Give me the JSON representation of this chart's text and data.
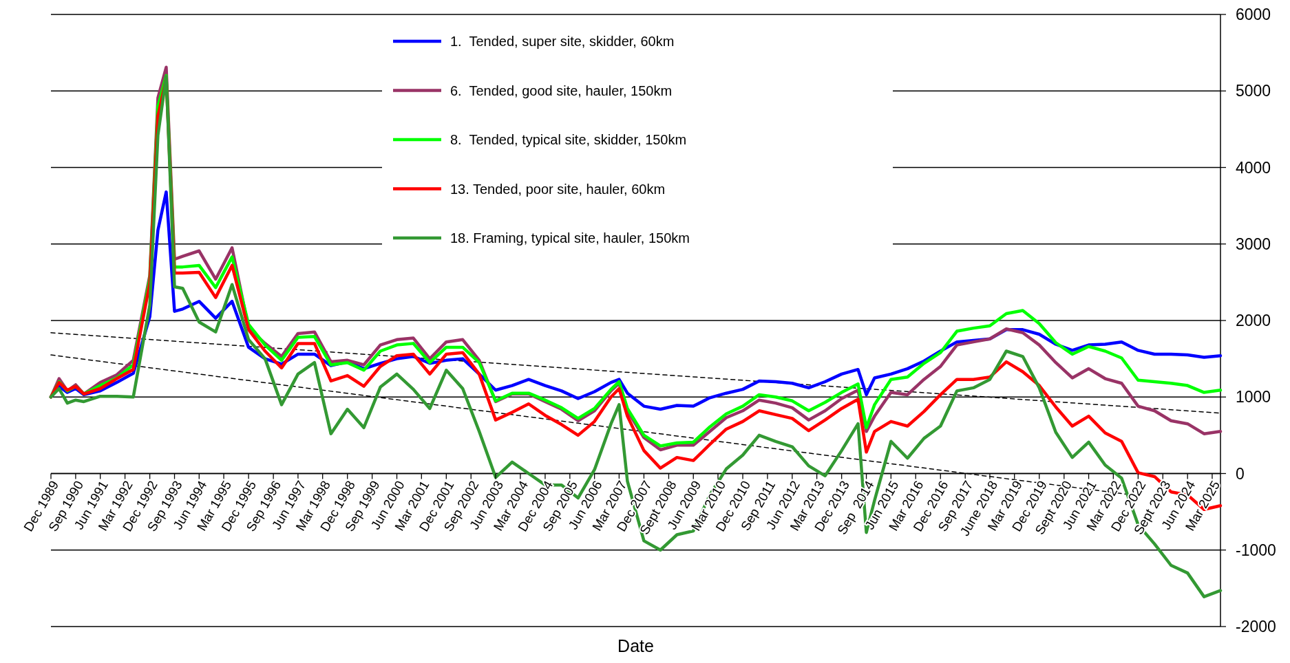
{
  "chart_data": {
    "type": "line",
    "xlabel": "Date",
    "legend": "top",
    "grid": "y",
    "xlim": [
      "1989-12",
      "2025-06"
    ],
    "xticks": [
      {
        "value": "1989-12",
        "label": "Dec 1989"
      },
      {
        "value": "1990-09",
        "label": "Sep 1990"
      },
      {
        "value": "1991-06",
        "label": "Jun 1991"
      },
      {
        "value": "1992-03",
        "label": "Mar 1992"
      },
      {
        "value": "1992-12",
        "label": "Dec 1992"
      },
      {
        "value": "1993-09",
        "label": "Sep 1993"
      },
      {
        "value": "1994-06",
        "label": "Jun 1994"
      },
      {
        "value": "1995-03",
        "label": "Mar 1995"
      },
      {
        "value": "1995-12",
        "label": "Dec 1995"
      },
      {
        "value": "1996-09",
        "label": "Sep 1996"
      },
      {
        "value": "1997-06",
        "label": "Jun 1997"
      },
      {
        "value": "1998-03",
        "label": "Mar 1998"
      },
      {
        "value": "1998-12",
        "label": "Dec 1998"
      },
      {
        "value": "1999-09",
        "label": "Sep 1999"
      },
      {
        "value": "2000-06",
        "label": "Jun 2000"
      },
      {
        "value": "2001-03",
        "label": "Mar 2001"
      },
      {
        "value": "2001-12",
        "label": "Dec 2001"
      },
      {
        "value": "2002-09",
        "label": "Sep 2002"
      },
      {
        "value": "2003-06",
        "label": "Jun 2003"
      },
      {
        "value": "2004-03",
        "label": "Mar 2004"
      },
      {
        "value": "2004-12",
        "label": "Dec 2004"
      },
      {
        "value": "2005-09",
        "label": "Sep 2005"
      },
      {
        "value": "2006-06",
        "label": "Jun 2006"
      },
      {
        "value": "2007-03",
        "label": "Mar 2007"
      },
      {
        "value": "2007-12",
        "label": "Dec 2007"
      },
      {
        "value": "2008-09",
        "label": "Sept 2008"
      },
      {
        "value": "2009-06",
        "label": "Jun 2009"
      },
      {
        "value": "2010-03",
        "label": "Mar 2010"
      },
      {
        "value": "2010-12",
        "label": "Dec 2010"
      },
      {
        "value": "2011-09",
        "label": "Sep 2011"
      },
      {
        "value": "2012-06",
        "label": "Jun 2012"
      },
      {
        "value": "2013-03",
        "label": "Mar 2013"
      },
      {
        "value": "2013-12",
        "label": "Dec 2013"
      },
      {
        "value": "2014-09",
        "label": "Sep  2014"
      },
      {
        "value": "2015-06",
        "label": "Jun 2015"
      },
      {
        "value": "2016-03",
        "label": "Mar 2016"
      },
      {
        "value": "2016-12",
        "label": "Dec 2016"
      },
      {
        "value": "2017-09",
        "label": "Sep 2017"
      },
      {
        "value": "2018-06",
        "label": "June 2018"
      },
      {
        "value": "2019-03",
        "label": "Mar 2019"
      },
      {
        "value": "2019-12",
        "label": "Dec 2019"
      },
      {
        "value": "2020-09",
        "label": "Sept 2020"
      },
      {
        "value": "2021-06",
        "label": "Jun 2021"
      },
      {
        "value": "2022-03",
        "label": "Mar 2022"
      },
      {
        "value": "2022-12",
        "label": "Dec 2022"
      },
      {
        "value": "2023-09",
        "label": "Sept 2023"
      },
      {
        "value": "2024-06",
        "label": "Jun 2024"
      },
      {
        "value": "2025-03",
        "label": "Mar 2025"
      }
    ],
    "ylim": [
      -2000,
      6000
    ],
    "yticks": [
      -2000,
      -1000,
      0,
      1000,
      2000,
      3000,
      4000,
      5000,
      6000
    ],
    "x": [
      "1989-12",
      "1990-03",
      "1990-06",
      "1990-09",
      "1990-12",
      "1991-06",
      "1991-12",
      "1992-06",
      "1992-12",
      "1993-03",
      "1993-06",
      "1993-09",
      "1993-12",
      "1994-06",
      "1994-12",
      "1995-06",
      "1995-12",
      "1996-06",
      "1996-12",
      "1997-06",
      "1997-12",
      "1998-06",
      "1998-12",
      "1999-06",
      "1999-12",
      "2000-06",
      "2000-12",
      "2001-06",
      "2001-12",
      "2002-06",
      "2002-12",
      "2003-06",
      "2003-12",
      "2004-06",
      "2004-12",
      "2005-06",
      "2005-12",
      "2006-06",
      "2006-12",
      "2007-03",
      "2007-06",
      "2007-12",
      "2008-06",
      "2008-12",
      "2009-06",
      "2009-12",
      "2010-06",
      "2010-12",
      "2011-06",
      "2011-12",
      "2012-06",
      "2012-12",
      "2013-06",
      "2013-12",
      "2014-06",
      "2014-09",
      "2014-12",
      "2015-06",
      "2015-12",
      "2016-06",
      "2016-12",
      "2017-06",
      "2017-12",
      "2018-06",
      "2018-12",
      "2019-06",
      "2019-12",
      "2020-06",
      "2020-12",
      "2021-06",
      "2021-12",
      "2022-06",
      "2022-12",
      "2023-06",
      "2023-12",
      "2024-06",
      "2024-12",
      "2025-06"
    ],
    "series": [
      {
        "type": "line",
        "line_style": "dashed",
        "color": "#000000",
        "x": [
          "1989-12",
          "2025-06"
        ],
        "values": [
          1840,
          790
        ]
      },
      {
        "type": "line",
        "line_style": "dashed",
        "color": "#000000",
        "x": [
          "1989-12",
          "2022-12"
        ],
        "values": [
          1550,
          -290
        ]
      },
      {
        "name": "1.  Tended, super site, skidder, 60km",
        "color": "#0000ff",
        "values": [
          1000,
          1140,
          1060,
          1110,
          1030,
          1080,
          1190,
          1310,
          2050,
          3180,
          3680,
          2120,
          2150,
          2250,
          2030,
          2250,
          1650,
          1500,
          1430,
          1560,
          1560,
          1410,
          1460,
          1370,
          1440,
          1500,
          1530,
          1440,
          1480,
          1500,
          1300,
          1090,
          1150,
          1230,
          1150,
          1080,
          980,
          1070,
          1190,
          1230,
          1050,
          880,
          840,
          890,
          880,
          990,
          1050,
          1100,
          1210,
          1200,
          1180,
          1120,
          1200,
          1300,
          1360,
          1030,
          1250,
          1300,
          1370,
          1470,
          1600,
          1720,
          1740,
          1760,
          1880,
          1880,
          1820,
          1690,
          1610,
          1680,
          1690,
          1720,
          1610,
          1560,
          1560,
          1550,
          1520,
          1540
        ]
      },
      {
        "name": "6.  Tended, good site, hauler, 150km",
        "color": "#993366",
        "values": [
          1000,
          1240,
          1080,
          1160,
          1040,
          1190,
          1290,
          1480,
          2590,
          4910,
          5310,
          2800,
          2840,
          2910,
          2540,
          2950,
          1900,
          1700,
          1530,
          1830,
          1850,
          1460,
          1480,
          1420,
          1680,
          1750,
          1770,
          1500,
          1720,
          1750,
          1480,
          940,
          1040,
          1040,
          940,
          840,
          690,
          820,
          1080,
          1180,
          820,
          470,
          310,
          370,
          370,
          550,
          730,
          820,
          960,
          920,
          860,
          700,
          820,
          980,
          1090,
          550,
          750,
          1060,
          1030,
          1230,
          1400,
          1680,
          1720,
          1760,
          1890,
          1840,
          1680,
          1450,
          1250,
          1370,
          1240,
          1180,
          880,
          820,
          690,
          650,
          520,
          550
        ]
      },
      {
        "name": "8.  Tended, typical site, skidder, 150km",
        "color": "#00ff00",
        "values": [
          1000,
          1200,
          1080,
          1140,
          1040,
          1150,
          1250,
          1420,
          2550,
          4800,
          5200,
          2700,
          2700,
          2720,
          2430,
          2830,
          1950,
          1680,
          1480,
          1780,
          1790,
          1420,
          1450,
          1350,
          1600,
          1680,
          1700,
          1450,
          1650,
          1650,
          1450,
          950,
          1050,
          1050,
          960,
          860,
          720,
          850,
          1100,
          1200,
          850,
          500,
          360,
          400,
          410,
          610,
          780,
          880,
          1030,
          1000,
          950,
          820,
          930,
          1060,
          1170,
          600,
          900,
          1230,
          1260,
          1440,
          1580,
          1860,
          1900,
          1930,
          2090,
          2130,
          1960,
          1710,
          1560,
          1660,
          1600,
          1510,
          1220,
          1200,
          1180,
          1150,
          1060,
          1090
        ]
      },
      {
        "name": "13. Tended, poor site, hauler, 60km",
        "color": "#ff0000",
        "values": [
          1000,
          1190,
          1090,
          1140,
          1040,
          1110,
          1240,
          1360,
          2490,
          4670,
          5160,
          2620,
          2620,
          2630,
          2300,
          2720,
          1880,
          1600,
          1380,
          1700,
          1700,
          1210,
          1280,
          1140,
          1400,
          1540,
          1560,
          1300,
          1560,
          1580,
          1300,
          700,
          800,
          910,
          760,
          640,
          500,
          680,
          1000,
          1110,
          750,
          300,
          70,
          210,
          170,
          380,
          580,
          680,
          820,
          770,
          720,
          560,
          700,
          850,
          970,
          280,
          550,
          680,
          620,
          810,
          1030,
          1230,
          1230,
          1260,
          1460,
          1330,
          1150,
          870,
          620,
          750,
          530,
          420,
          10,
          -40,
          -240,
          -280,
          -470,
          -420
        ]
      },
      {
        "name": "18. Framing, typical site, hauler, 150km",
        "color": "#339933",
        "values": [
          1000,
          1110,
          920,
          960,
          940,
          1010,
          1010,
          1000,
          2200,
          4420,
          5190,
          2440,
          2420,
          1980,
          1850,
          2470,
          1750,
          1500,
          900,
          1300,
          1450,
          520,
          840,
          600,
          1130,
          1300,
          1100,
          850,
          1350,
          1110,
          550,
          -50,
          150,
          0,
          -150,
          -150,
          -320,
          50,
          650,
          900,
          -100,
          -880,
          -1000,
          -800,
          -750,
          -280,
          60,
          240,
          500,
          420,
          350,
          100,
          -30,
          300,
          650,
          -770,
          -350,
          420,
          200,
          460,
          620,
          1080,
          1120,
          1230,
          1600,
          1530,
          1120,
          540,
          210,
          410,
          110,
          -60,
          -670,
          -920,
          -1200,
          -1300,
          -1610,
          -1530
        ]
      }
    ]
  }
}
